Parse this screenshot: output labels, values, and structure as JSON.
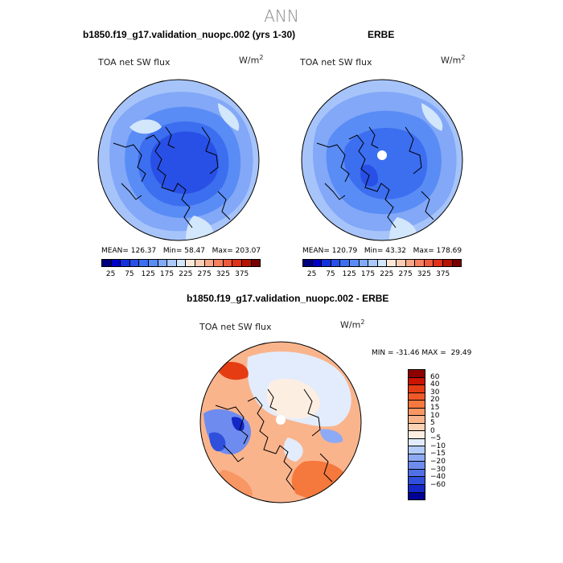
{
  "page": {
    "title": "ANN"
  },
  "panels": [
    {
      "title": "b1850.f19_g17.validation_nuopc.002 (yrs 1-30)",
      "variable": "TOA net SW flux",
      "units": "W/m",
      "units_sup": "2",
      "stats": {
        "mean_label": "MEAN=",
        "mean": "126.37",
        "min_label": "Min=",
        "min": "58.47",
        "max_label": "Max=",
        "max": "203.07"
      }
    },
    {
      "title": "ERBE",
      "variable": "TOA net SW flux",
      "units": "W/m",
      "units_sup": "2",
      "stats": {
        "mean_label": "MEAN=",
        "mean": "120.79",
        "min_label": "Min=",
        "min": "43.32",
        "max_label": "Max=",
        "max": "178.69"
      }
    }
  ],
  "top_colorbar": {
    "colors": [
      "#00007f",
      "#0000c8",
      "#1432dc",
      "#2850e6",
      "#3c6ef0",
      "#5a8cf5",
      "#82aaf8",
      "#aac8fa",
      "#d2e6fc",
      "#fde8d8",
      "#fbcdb4",
      "#f8a888",
      "#f58160",
      "#ee5a3c",
      "#e03218",
      "#b41400",
      "#780000"
    ],
    "ticks": [
      "25",
      "75",
      "125",
      "175",
      "225",
      "275",
      "325",
      "375"
    ]
  },
  "diff_panel": {
    "title": "b1850.f19_g17.validation_nuopc.002 - ERBE",
    "variable": "TOA net SW flux",
    "units": "W/m",
    "units_sup": "2",
    "minmax": {
      "min_label": "MIN =",
      "min": "-31.46",
      "max_label": "MAX =",
      "max": "29.49"
    }
  },
  "diff_colorbar": {
    "colors": [
      "#8c0000",
      "#c81400",
      "#e63c14",
      "#f05a28",
      "#f5783c",
      "#f89664",
      "#fab48c",
      "#fcd2b4",
      "#fdeee2",
      "#e2ecfc",
      "#b4ccfa",
      "#8caaf5",
      "#6e8cf0",
      "#5070e6",
      "#3050dc",
      "#1428c8",
      "#000096"
    ],
    "ticks": [
      "60",
      "40",
      "30",
      "20",
      "15",
      "10",
      "5",
      "0",
      "−5",
      "−10",
      "−15",
      "−20",
      "−30",
      "−40",
      "−60"
    ]
  }
}
